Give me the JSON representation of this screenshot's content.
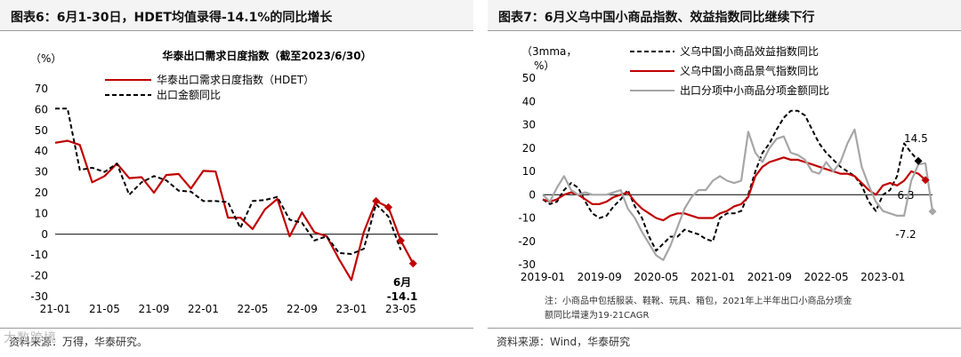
{
  "left_panel": {
    "header_title": "图表6：6月1-30日，HDET均值录得-14.1%的同比增长",
    "source": "资料来源：万得，华泰研究。"
  },
  "right_panel": {
    "header_title": "图表7：6月义乌中国小商品指数、效益指数同比继续下行",
    "source": "资料来源：Wind，华泰研究",
    "note_line1": "注：小商品中包括服装、鞋靴、玩具、箱包，2021年上半年出口小商品分项金",
    "note_line2": "额同比增速为19-21CAGR"
  },
  "watermark": "大数跨境",
  "chart_data": [
    {
      "type": "line",
      "title": "华泰出口需求日度指数（截至2023/6/30）",
      "unit_label": "（%）",
      "ylim": [
        -30,
        70
      ],
      "yticks": [
        -30,
        -20,
        -10,
        0,
        10,
        20,
        30,
        40,
        50,
        60,
        70
      ],
      "xlim": [
        0,
        31
      ],
      "xticks": [
        {
          "label": "21-01",
          "x": 0
        },
        {
          "label": "21-05",
          "x": 4
        },
        {
          "label": "21-09",
          "x": 8
        },
        {
          "label": "22-01",
          "x": 12
        },
        {
          "label": "22-05",
          "x": 16
        },
        {
          "label": "22-09",
          "x": 20
        },
        {
          "label": "23-01",
          "x": 24
        },
        {
          "label": "23-05",
          "x": 28
        }
      ],
      "legend_position": "top",
      "series": [
        {
          "name": "华泰出口需求日度指数（HDET）",
          "color": "#c00000",
          "style": "solid",
          "values": [
            44,
            45,
            43,
            25,
            28,
            34,
            27,
            27.5,
            20,
            28.5,
            29,
            22,
            30.5,
            30.2,
            8,
            8,
            2.5,
            12,
            17,
            -1,
            10.5,
            1,
            -1,
            -12,
            -22,
            1,
            16,
            13,
            -3,
            -14.1
          ]
        },
        {
          "name": "出口金额同比",
          "color": "#000000",
          "style": "dashed",
          "values": [
            60.5,
            60.5,
            31,
            32,
            30,
            34,
            19,
            25,
            28,
            26,
            21,
            20.5,
            16,
            16,
            15.5,
            3,
            16,
            16.5,
            18,
            7,
            5.5,
            -3,
            -1,
            -9,
            -9.5,
            -7,
            14.5,
            8.5,
            -7.5
          ]
        }
      ],
      "annotations": [
        {
          "text": "6月",
          "color": "#c00000"
        },
        {
          "text": "-14.1",
          "color": "#c00000"
        }
      ]
    },
    {
      "type": "line",
      "unit_label_line1": "（3mma，",
      "unit_label_line2": "%）",
      "ylim": [
        -30,
        50
      ],
      "yticks": [
        -30,
        -20,
        -10,
        0,
        10,
        20,
        30,
        40,
        50
      ],
      "xlim": [
        0,
        55
      ],
      "xticks": [
        {
          "label": "2019-01",
          "x": 0
        },
        {
          "label": "2019-09",
          "x": 8
        },
        {
          "label": "2020-05",
          "x": 16
        },
        {
          "label": "2021-01",
          "x": 24
        },
        {
          "label": "2021-09",
          "x": 32
        },
        {
          "label": "2022-05",
          "x": 40
        },
        {
          "label": "2023-01",
          "x": 48
        }
      ],
      "legend_position": "top",
      "series": [
        {
          "name": "义乌中国小商品效益指数同比",
          "color": "#000000",
          "style": "dashed",
          "values": [
            -2,
            -4,
            -3,
            2,
            5,
            3,
            -3,
            -8,
            -10,
            -9,
            -5,
            -2,
            2,
            -5,
            -10,
            -18,
            -24,
            -21,
            -18,
            -18,
            -15,
            -16,
            -17,
            -19,
            -20,
            -10,
            -8,
            -8,
            -7,
            0,
            10,
            18,
            22,
            28,
            33,
            36,
            36,
            34,
            28,
            22,
            18,
            15,
            12,
            10,
            8,
            4,
            -3,
            -7,
            0,
            2,
            8,
            22,
            18,
            14.5
          ]
        },
        {
          "name": "义乌中国小商品景气指数同比",
          "color": "#c00000",
          "style": "solid",
          "values": [
            -2,
            -3,
            -2,
            0,
            1,
            0,
            -2,
            -4,
            -4,
            -3,
            -1,
            0,
            1,
            -3,
            -6,
            -8,
            -10,
            -11,
            -9,
            -8,
            -8,
            -9,
            -10,
            -10,
            -10,
            -8,
            -7,
            -5,
            -4,
            -1,
            8,
            12,
            14,
            15,
            16,
            15,
            15,
            14,
            13,
            12,
            11,
            10,
            9,
            9,
            8,
            5,
            2,
            0,
            4,
            5,
            4,
            6,
            10,
            9,
            6.3
          ]
        },
        {
          "name": "出口分项中小商品分项金额同比",
          "color": "#a6a6a6",
          "style": "solid",
          "values": [
            0,
            -3,
            3,
            8,
            2,
            0,
            1,
            0,
            0,
            0,
            1,
            2,
            -6,
            -10,
            -16,
            -21,
            -26,
            -28,
            -22,
            -14,
            -6,
            -1,
            2,
            2,
            6,
            8,
            6,
            5,
            6,
            27,
            18,
            14,
            20,
            24,
            25,
            18,
            17,
            15,
            10,
            9,
            14,
            10,
            14,
            22,
            28,
            12,
            4,
            -3,
            -7,
            -8,
            -9,
            -9,
            6,
            13,
            13.5,
            -7.2
          ]
        }
      ],
      "annotations": [
        {
          "text": "14.5",
          "color": "#000000"
        },
        {
          "text": "6.3",
          "color": "#000000"
        },
        {
          "text": "-7.2",
          "color": "#000000"
        }
      ]
    }
  ]
}
